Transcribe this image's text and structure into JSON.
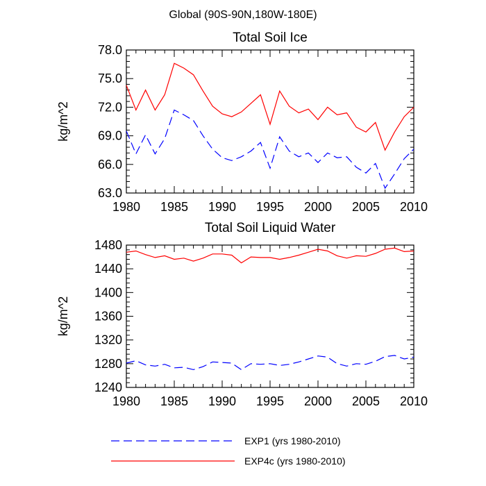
{
  "suptitle": "Global (90S-90N,180W-180E)",
  "chart_data": [
    {
      "type": "line",
      "title": "Total Soil Ice",
      "xlabel": "",
      "ylabel": "kg/m^2",
      "xlim": [
        1980,
        2010
      ],
      "ylim": [
        63.0,
        78.0
      ],
      "xticks": [
        1980,
        1985,
        1990,
        1995,
        2000,
        2005,
        2010
      ],
      "yticks": [
        63.0,
        66.0,
        69.0,
        72.0,
        75.0,
        78.0
      ],
      "ytick_labels": [
        "63.0",
        "66.0",
        "69.0",
        "72.0",
        "75.0",
        "78.0"
      ],
      "grid": false,
      "x": [
        1980,
        1981,
        1982,
        1983,
        1984,
        1985,
        1986,
        1987,
        1988,
        1989,
        1990,
        1991,
        1992,
        1993,
        1994,
        1995,
        1996,
        1997,
        1998,
        1999,
        2000,
        2001,
        2002,
        2003,
        2004,
        2005,
        2006,
        2007,
        2008,
        2009,
        2010
      ],
      "series": [
        {
          "name": "EXP1 (yrs 1980-2010)",
          "color": "#0000ff",
          "dash": "dashed",
          "values": [
            69.5,
            67.1,
            69.1,
            67.1,
            68.7,
            71.7,
            71.2,
            70.6,
            69.0,
            67.6,
            66.7,
            66.4,
            66.8,
            67.4,
            68.3,
            65.6,
            68.9,
            67.4,
            66.8,
            67.2,
            66.2,
            67.2,
            66.7,
            66.8,
            65.7,
            65.1,
            66.1,
            63.5,
            65.0,
            66.6,
            67.6
          ]
        },
        {
          "name": "EXP4c (yrs 1980-2010)",
          "color": "#ff0000",
          "dash": "solid",
          "values": [
            74.3,
            71.7,
            73.8,
            71.7,
            73.3,
            76.6,
            76.1,
            75.4,
            73.7,
            72.1,
            71.3,
            71.0,
            71.5,
            72.4,
            73.3,
            70.2,
            73.7,
            72.1,
            71.4,
            71.8,
            70.7,
            72.0,
            71.2,
            71.4,
            69.9,
            69.4,
            70.4,
            67.5,
            69.4,
            71.0,
            72.0
          ]
        }
      ]
    },
    {
      "type": "line",
      "title": "Total Soil Liquid Water",
      "xlabel": "",
      "ylabel": "kg/m^2",
      "xlim": [
        1980,
        2010
      ],
      "ylim": [
        1240,
        1480
      ],
      "xticks": [
        1980,
        1985,
        1990,
        1995,
        2000,
        2005,
        2010
      ],
      "yticks": [
        1240,
        1280,
        1320,
        1360,
        1400,
        1440,
        1480
      ],
      "ytick_labels": [
        "1240",
        "1280",
        "1320",
        "1360",
        "1400",
        "1440",
        "1480"
      ],
      "grid": false,
      "x": [
        1980,
        1981,
        1982,
        1983,
        1984,
        1985,
        1986,
        1987,
        1988,
        1989,
        1990,
        1991,
        1992,
        1993,
        1994,
        1995,
        1996,
        1997,
        1998,
        1999,
        2000,
        2001,
        2002,
        2003,
        2004,
        2005,
        2006,
        2007,
        2008,
        2009,
        2010
      ],
      "series": [
        {
          "name": "EXP1 (yrs 1980-2010)",
          "color": "#0000ff",
          "dash": "dashed",
          "values": [
            1281,
            1285,
            1278,
            1276,
            1279,
            1273,
            1274,
            1270,
            1275,
            1283,
            1282,
            1281,
            1270,
            1280,
            1279,
            1280,
            1277,
            1279,
            1283,
            1288,
            1293,
            1291,
            1280,
            1276,
            1280,
            1279,
            1284,
            1292,
            1294,
            1288,
            1291
          ]
        },
        {
          "name": "EXP4c (yrs 1980-2010)",
          "color": "#ff0000",
          "dash": "solid",
          "values": [
            1468,
            1470,
            1464,
            1459,
            1462,
            1456,
            1458,
            1453,
            1458,
            1465,
            1465,
            1463,
            1450,
            1460,
            1459,
            1459,
            1456,
            1459,
            1463,
            1468,
            1473,
            1470,
            1462,
            1458,
            1462,
            1461,
            1466,
            1473,
            1475,
            1469,
            1470
          ]
        }
      ]
    }
  ],
  "legend": [
    {
      "label": "EXP1 (yrs 1980-2010)",
      "color": "#0000ff",
      "dash": "dashed"
    },
    {
      "label": "EXP4c (yrs 1980-2010)",
      "color": "#ff0000",
      "dash": "solid"
    }
  ]
}
